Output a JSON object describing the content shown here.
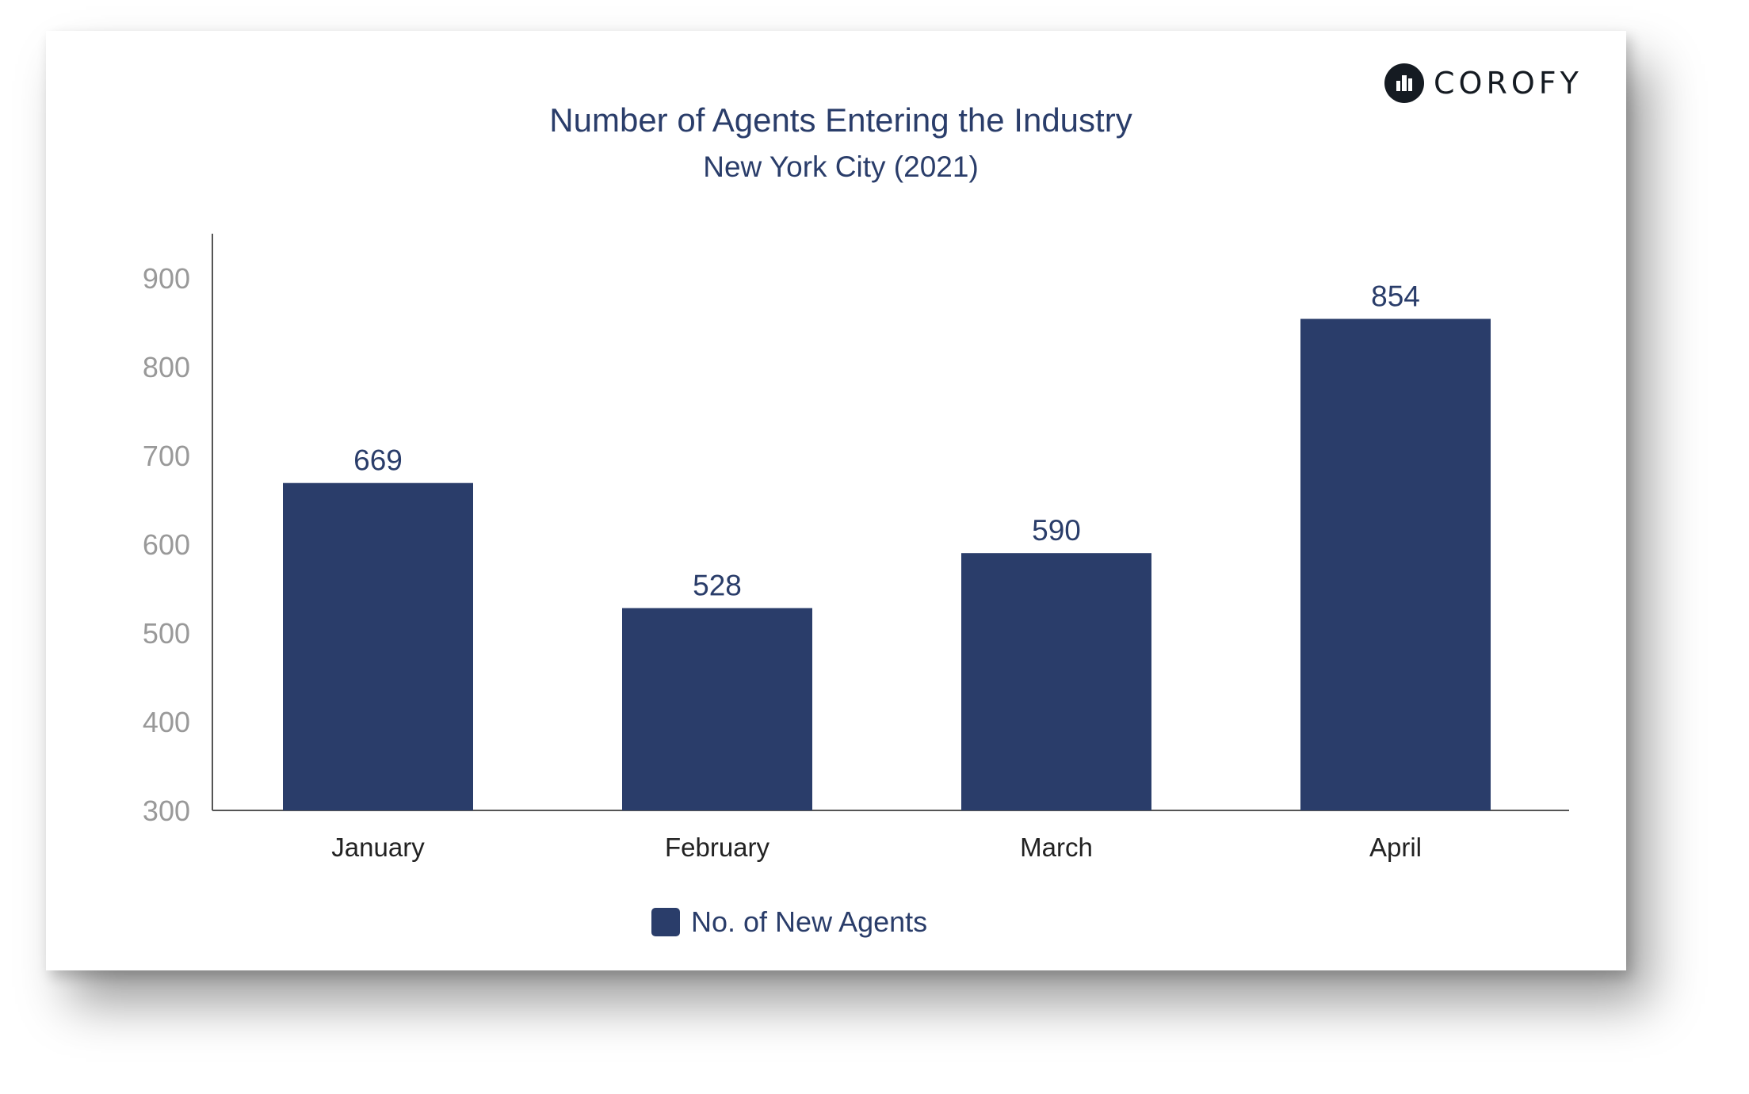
{
  "brand": {
    "name": "COROFY",
    "icon": "corofy-logo-icon"
  },
  "colors": {
    "bar": "#2a3d6a",
    "axis": "#555555",
    "tick_label": "#999999",
    "category_label": "#222222",
    "data_label": "#2a3d6a"
  },
  "chart_data": {
    "type": "bar",
    "title": "Number of Agents Entering the Industry",
    "subtitle": "New York City (2021)",
    "categories": [
      "January",
      "February",
      "March",
      "April"
    ],
    "series": [
      {
        "name": "No. of New Agents",
        "values": [
          669,
          528,
          590,
          854
        ]
      }
    ],
    "ylim": [
      300,
      950
    ],
    "yticks": [
      300,
      400,
      500,
      600,
      700,
      800,
      900
    ],
    "grid": false,
    "data_labels": true,
    "legend": "bottom"
  }
}
